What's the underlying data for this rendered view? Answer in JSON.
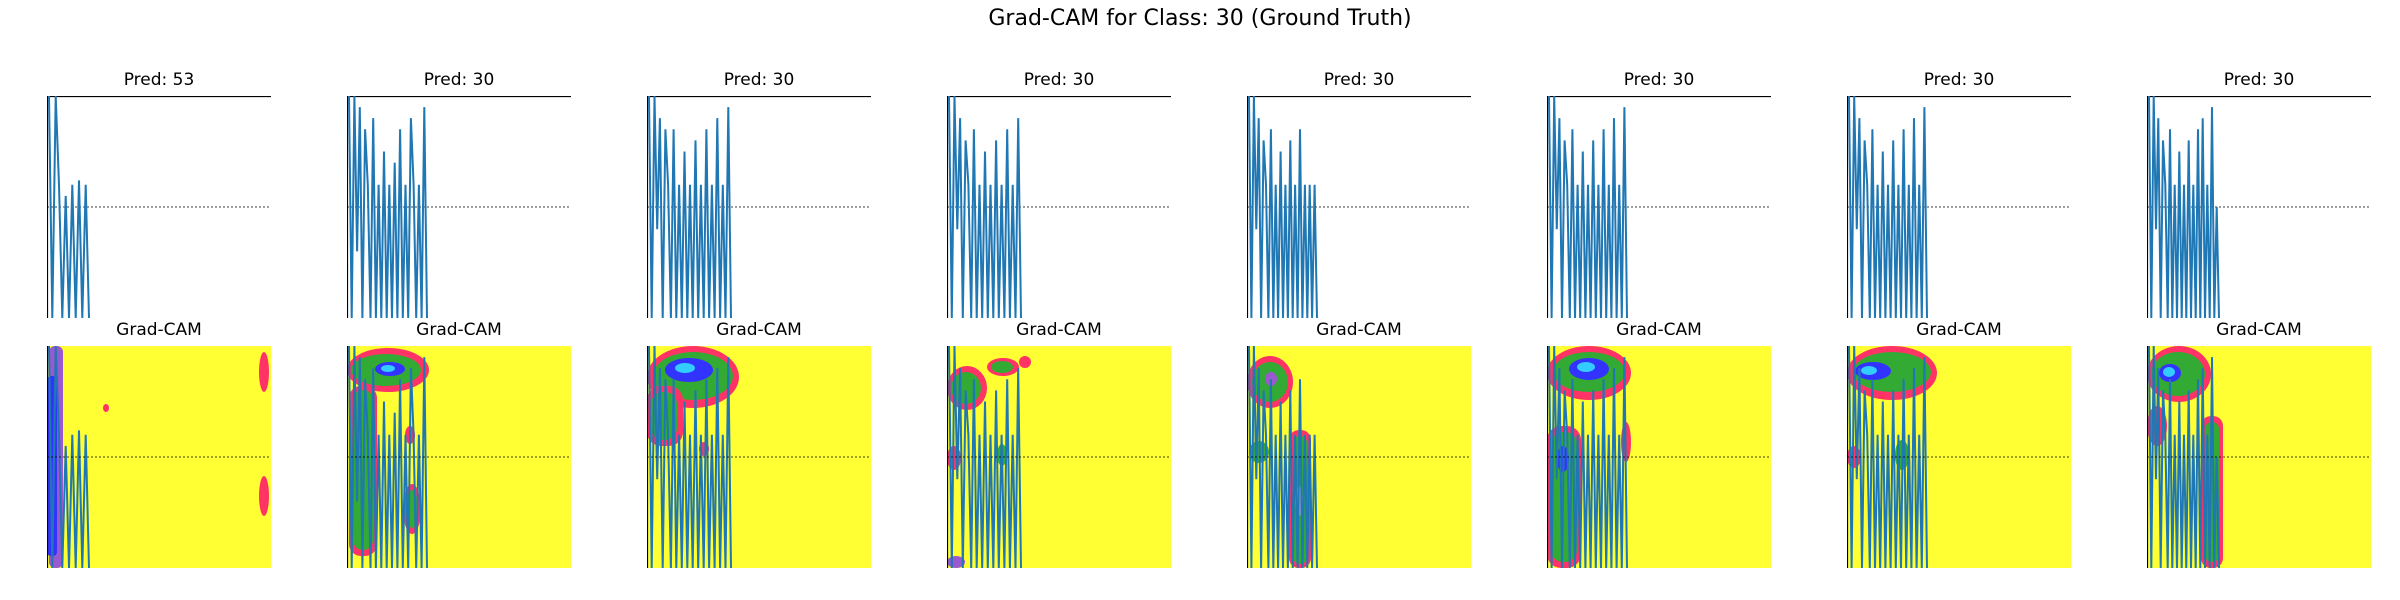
{
  "figure": {
    "title": "Grad-CAM for Class: 30 (Ground Truth)"
  },
  "chart_data": [
    {
      "type": "line",
      "title": "Pred: 53",
      "values": [
        1.0,
        0.0,
        1.0,
        0.6,
        0.0,
        0.55,
        0.0,
        0.6,
        0.0,
        0.62,
        0.0,
        0.6,
        0.0
      ],
      "heatmap_title": "Grad-CAM"
    },
    {
      "type": "line",
      "title": "Pred: 30",
      "values": [
        1.0,
        0.0,
        1.0,
        0.3,
        0.95,
        0.0,
        0.85,
        0.6,
        0.0,
        0.9,
        0.0,
        0.6,
        0.0,
        0.75,
        0.0,
        0.6,
        0.0,
        0.7,
        0.0,
        0.85,
        0.0,
        0.6,
        0.0,
        0.9,
        0.6,
        0.0,
        0.6,
        0.0,
        0.95,
        0.0
      ],
      "heatmap_title": "Grad-CAM"
    },
    {
      "type": "line",
      "title": "Pred: 30",
      "values": [
        1.0,
        0.0,
        1.0,
        0.4,
        0.9,
        0.0,
        0.85,
        0.6,
        0.0,
        0.85,
        0.0,
        0.6,
        0.0,
        0.75,
        0.0,
        0.6,
        0.0,
        0.8,
        0.0,
        0.6,
        0.0,
        0.85,
        0.0,
        0.6,
        0.0,
        0.9,
        0.0,
        0.6,
        0.0,
        0.95,
        0.0
      ],
      "heatmap_title": "Grad-CAM"
    },
    {
      "type": "line",
      "title": "Pred: 30",
      "values": [
        1.0,
        0.0,
        1.0,
        0.4,
        0.9,
        0.0,
        0.8,
        0.6,
        0.0,
        0.85,
        0.0,
        0.6,
        0.0,
        0.75,
        0.0,
        0.6,
        0.0,
        0.8,
        0.0,
        0.6,
        0.0,
        0.85,
        0.0,
        0.6,
        0.0,
        0.9,
        0.0
      ],
      "heatmap_title": "Grad-CAM"
    },
    {
      "type": "line",
      "title": "Pred: 30",
      "values": [
        1.0,
        0.0,
        1.0,
        0.4,
        0.9,
        0.0,
        0.8,
        0.6,
        0.0,
        0.85,
        0.0,
        0.6,
        0.0,
        0.75,
        0.0,
        0.6,
        0.0,
        0.8,
        0.0,
        0.6,
        0.0,
        0.85,
        0.0,
        0.6,
        0.0,
        0.6,
        0.0,
        0.6,
        0.0
      ],
      "heatmap_title": "Grad-CAM"
    },
    {
      "type": "line",
      "title": "Pred: 30",
      "values": [
        1.0,
        0.0,
        1.0,
        0.4,
        0.9,
        0.0,
        0.8,
        0.6,
        0.0,
        0.85,
        0.0,
        0.6,
        0.0,
        0.75,
        0.0,
        0.6,
        0.0,
        0.8,
        0.0,
        0.6,
        0.0,
        0.85,
        0.0,
        0.6,
        0.0,
        0.9,
        0.0,
        0.6,
        0.0,
        0.95,
        0.0
      ],
      "heatmap_title": "Grad-CAM"
    },
    {
      "type": "line",
      "title": "Pred: 30",
      "values": [
        1.0,
        0.0,
        1.0,
        0.4,
        0.9,
        0.0,
        0.8,
        0.6,
        0.0,
        0.85,
        0.0,
        0.6,
        0.0,
        0.75,
        0.0,
        0.6,
        0.0,
        0.8,
        0.0,
        0.6,
        0.0,
        0.85,
        0.0,
        0.6,
        0.0,
        0.9,
        0.0,
        0.6,
        0.0,
        0.95,
        0.0
      ],
      "heatmap_title": "Grad-CAM"
    },
    {
      "type": "line",
      "title": "Pred: 30",
      "values": [
        1.0,
        0.0,
        1.0,
        0.4,
        0.9,
        0.0,
        0.8,
        0.6,
        0.0,
        0.85,
        0.0,
        0.6,
        0.0,
        0.75,
        0.0,
        0.6,
        0.0,
        0.8,
        0.0,
        0.6,
        0.0,
        0.85,
        0.0,
        0.9,
        0.0,
        0.6,
        0.0,
        0.95,
        0.0,
        0.5,
        0.0
      ],
      "heatmap_title": "Grad-CAM"
    }
  ],
  "colors": {
    "line": "#1f77b4",
    "heatmap_background": "#ffff33",
    "hot_edge": "#ff3366",
    "warm": "#33aa33",
    "hot_core": "#3333ff",
    "hottest": "#33ccff"
  }
}
